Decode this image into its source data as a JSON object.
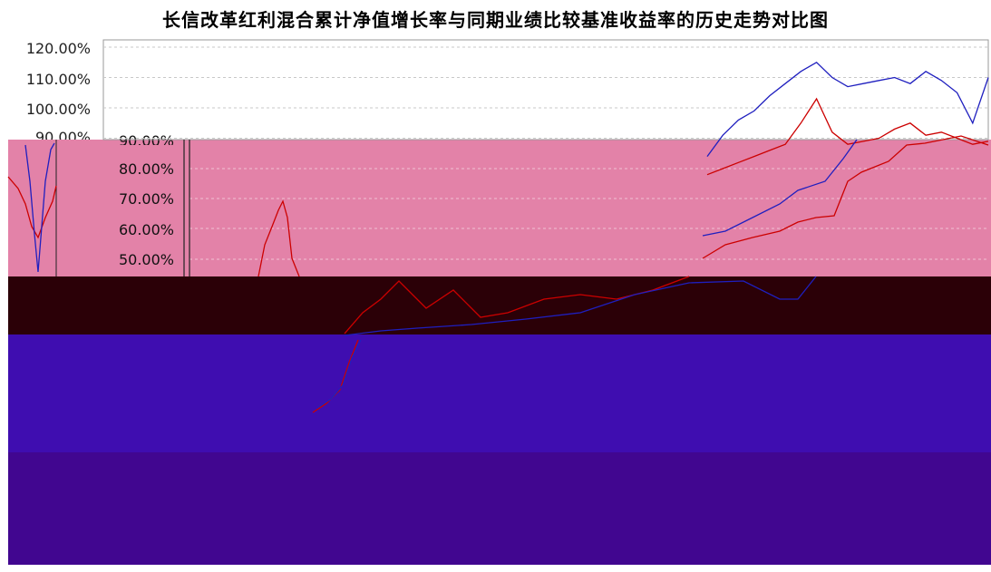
{
  "chart_data": {
    "type": "line",
    "title": "长信改革红利混合累计净值增长率与同期业绩比较基准收益率的历史走势对比图",
    "y_ticks_upper": [
      "120.00%",
      "110.00%",
      "100.00%",
      "90.00%"
    ],
    "y_ticks_pink": [
      "90.00%",
      "80.00%",
      "70.00%",
      "60.00%",
      "50.00%"
    ],
    "ylim": [
      40,
      122
    ],
    "series": [
      {
        "color": "#1f1fbf",
        "values": [
          84,
          91,
          96,
          99,
          104,
          108,
          112,
          115,
          110,
          107,
          108,
          109,
          110,
          108,
          112,
          109,
          105,
          95,
          110
        ]
      },
      {
        "color": "#cc0000",
        "values": [
          78,
          80,
          82,
          84,
          86,
          88,
          95,
          103,
          92,
          88,
          89,
          90,
          93,
          95,
          91,
          92,
          90,
          88,
          89
        ]
      }
    ],
    "colors": {
      "pink_band": "#e382a8",
      "dark_band": "#2b0007",
      "purple_band_1": "#3f0db0",
      "purple_band_2": "#410690"
    }
  }
}
